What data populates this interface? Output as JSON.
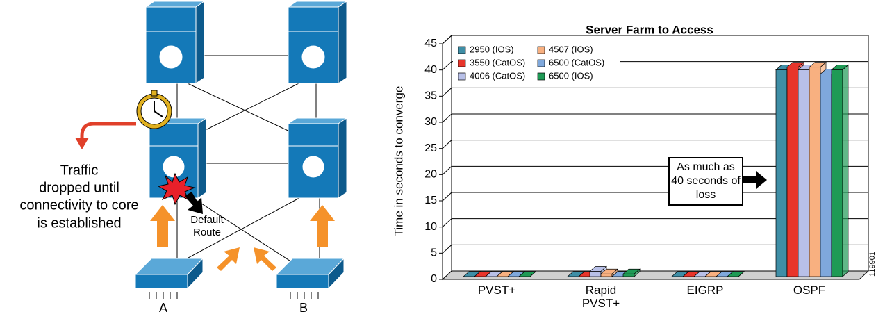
{
  "diagram": {
    "traffic_note": [
      "Traffic",
      "dropped until",
      "connectivity to core",
      "is established"
    ],
    "route_label": [
      "Default",
      "Route"
    ],
    "access_a": "A",
    "access_b": "B"
  },
  "chart_data": {
    "type": "bar3d",
    "title": "Server Farm to Access",
    "y_label": "Time in seconds to converge",
    "categories": [
      "PVST+",
      "Rapid PVST+",
      "EIGRP",
      "OSPF"
    ],
    "series": [
      {
        "name": "2950 (IOS)",
        "color": "#3f8ea6",
        "values": [
          0,
          0,
          0,
          39.5
        ]
      },
      {
        "name": "3550 (CatOS)",
        "color": "#e8352b",
        "values": [
          0,
          0,
          0,
          40
        ]
      },
      {
        "name": "4006 (CatOS)",
        "color": "#b8c0e8",
        "values": [
          0,
          1,
          0,
          39.5
        ]
      },
      {
        "name": "4507 (IOS)",
        "color": "#f8b080",
        "values": [
          0,
          0.5,
          0,
          40
        ]
      },
      {
        "name": "6500 (CatOS)",
        "color": "#7fa8dc",
        "values": [
          0,
          0,
          0,
          38.7
        ]
      },
      {
        "name": "6500 (IOS)",
        "color": "#1e9a55",
        "values": [
          0,
          0.5,
          0,
          39.5
        ]
      }
    ],
    "ylim": [
      0,
      45
    ],
    "yticks": [
      0,
      5,
      10,
      15,
      20,
      25,
      30,
      35,
      40,
      45
    ],
    "grid": true,
    "annotation": "As much as 40 seconds of loss",
    "figure_id": "119901"
  }
}
